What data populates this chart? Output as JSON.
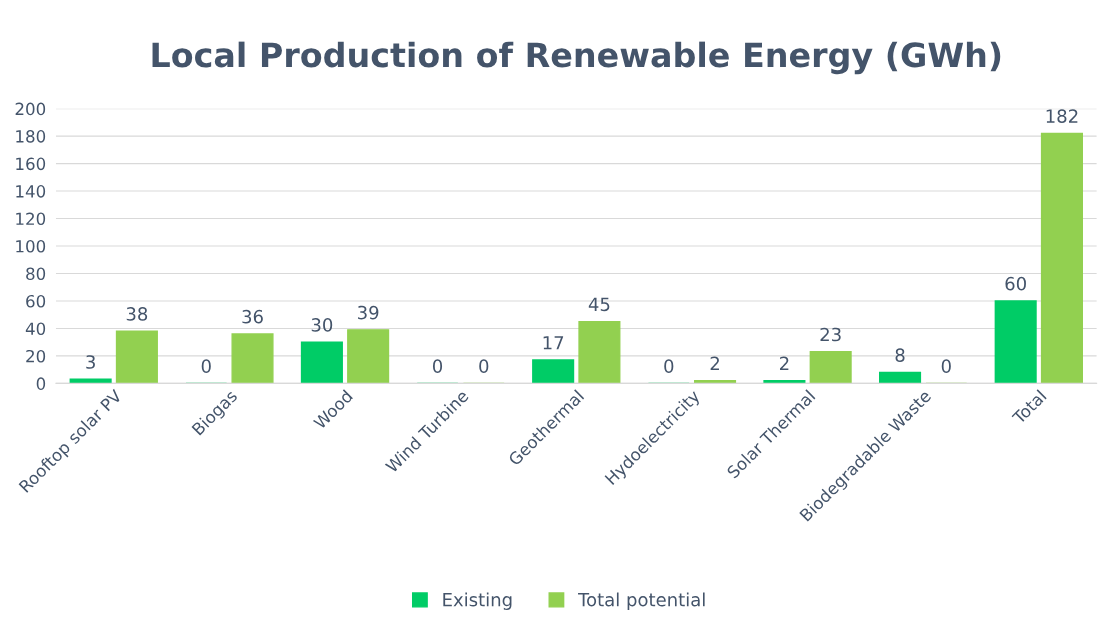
{
  "chart_data": {
    "type": "bar",
    "title": "Local Production of Renewable Energy (GWh)",
    "categories": [
      "Rooftop solar PV",
      "Biogas",
      "Wood",
      "Wind Turbine",
      "Geothermal",
      "Hydoelectricity",
      "Solar Thermal",
      "Biodegradable Waste",
      "Total"
    ],
    "series": [
      {
        "name": "Existing",
        "color": "#00cc66",
        "values": [
          3,
          0,
          30,
          0,
          17,
          0,
          2,
          8,
          60
        ]
      },
      {
        "name": "Total potential",
        "color": "#92d050",
        "values": [
          38,
          36,
          39,
          0,
          45,
          2,
          23,
          0,
          182
        ]
      }
    ],
    "ylim": [
      0,
      200
    ],
    "yticks": [
      0,
      20,
      40,
      60,
      80,
      100,
      120,
      140,
      160,
      180,
      200
    ],
    "grid": "y",
    "legend": "bottom",
    "data_labels": true
  }
}
